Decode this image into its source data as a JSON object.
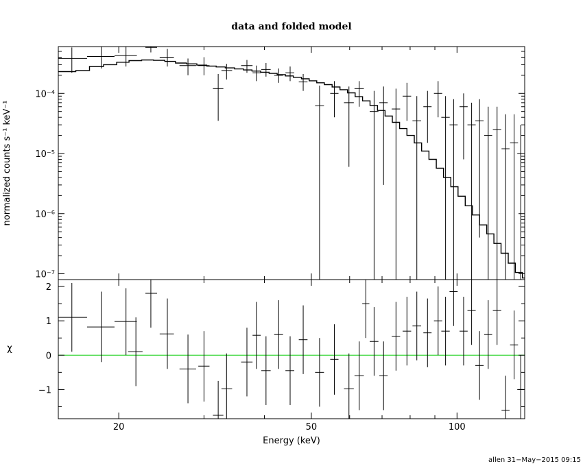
{
  "chart_data": {
    "type": "scatter",
    "title": "data and folded model",
    "xlabel": "Energy (keV)",
    "credit": "allen 31−May−2015 09:15",
    "xscale": "log",
    "xlim": [
      15,
      138
    ],
    "x_ticks": [
      20,
      50,
      100
    ],
    "x_tick_labels": [
      "20",
      "50",
      "100"
    ],
    "panels": [
      {
        "name": "spectrum",
        "ylabel": "normalized counts s⁻¹ keV⁻¹",
        "yscale": "log",
        "ylim": [
          8e-08,
          0.0006
        ],
        "y_ticks": [
          1e-07,
          1e-06,
          1e-05,
          0.0001
        ],
        "y_tick_labels": [
          "10⁻⁷",
          "10⁻⁶",
          "10⁻⁵",
          "10⁻⁴"
        ],
        "series": [
          {
            "kind": "data",
            "color": "#000000",
            "points": [
              [
                16,
                0.00038,
                15,
                17.2,
                0.00022,
                0.00058
              ],
              [
                18.4,
                0.00041,
                17.2,
                19.6,
                0.00026,
                0.0006
              ],
              [
                20.7,
                0.00043,
                19.6,
                21.8,
                0.00028,
                0.0006
              ],
              [
                23.3,
                0.00058,
                22.7,
                24.0,
                0.00048,
                0.0006
              ],
              [
                25.2,
                0.0004,
                24.3,
                26.0,
                0.00028,
                0.00055
              ],
              [
                27.8,
                0.00029,
                26.7,
                28.9,
                0.0002,
                0.00038
              ],
              [
                30.0,
                0.00029,
                29.2,
                30.8,
                0.0002,
                0.0004
              ],
              [
                32.1,
                0.00012,
                31.3,
                32.9,
                3.5e-05,
                0.00021
              ],
              [
                33.4,
                0.00024,
                32.6,
                34.3,
                0.00017,
                0.00031
              ],
              [
                36.8,
                0.00029,
                35.8,
                37.8,
                0.00022,
                0.00036
              ],
              [
                38.5,
                0.00022,
                37.8,
                39.3,
                0.00016,
                0.00029
              ],
              [
                40.3,
                0.00025,
                39.4,
                41.2,
                0.00019,
                0.00032
              ],
              [
                42.8,
                0.0002,
                41.9,
                43.7,
                0.00015,
                0.00026
              ],
              [
                45.2,
                0.00022,
                44.2,
                46.1,
                0.00016,
                0.00028
              ],
              [
                48.1,
                0.000155,
                47.1,
                49.1,
                0.00011,
                0.00021
              ],
              [
                52.0,
                6.2e-05,
                50.9,
                53.1,
                8e-08,
                0.000135
              ],
              [
                55.8,
                0.0001,
                54.7,
                56.9,
                4e-05,
                0.00016
              ],
              [
                59.8,
                7e-05,
                58.4,
                61.2,
                6e-06,
                0.00013
              ],
              [
                62.8,
                0.00012,
                61.4,
                64.2,
                6e-05,
                0.00016
              ],
              [
                67.4,
                5e-05,
                66.0,
                68.8,
                8e-08,
                0.00011
              ],
              [
                70.5,
                7e-05,
                69.1,
                71.9,
                3e-06,
                0.00013
              ],
              [
                74.8,
                5.5e-05,
                73.3,
                76.3,
                8e-08,
                0.00012
              ],
              [
                78.8,
                9e-05,
                77.2,
                80.4,
                3.5e-05,
                0.00015
              ],
              [
                82.6,
                3.5e-05,
                80.9,
                84.3,
                8e-08,
                9e-05
              ],
              [
                86.9,
                6e-05,
                85.2,
                88.6,
                1.5e-05,
                0.00011
              ],
              [
                91.4,
                0.0001,
                89.6,
                93.2,
                4e-05,
                0.00016
              ],
              [
                94.7,
                4e-05,
                92.8,
                96.6,
                8e-08,
                9e-05
              ],
              [
                98.4,
                3e-05,
                96.5,
                100.3,
                8e-08,
                8e-05
              ],
              [
                103.2,
                6e-05,
                101.2,
                105.2,
                8e-06,
                0.0001
              ],
              [
                107.2,
                3e-05,
                105.1,
                109.3,
                8e-08,
                7e-05
              ],
              [
                111.3,
                3.5e-05,
                109.1,
                113.5,
                4e-07,
                8e-05
              ],
              [
                116.0,
                2e-05,
                113.8,
                118.2,
                8e-08,
                6e-05
              ],
              [
                121.0,
                2.5e-05,
                118.6,
                123.4,
                8e-08,
                6e-05
              ],
              [
                126.0,
                1.2e-05,
                123.6,
                128.4,
                8e-08,
                4.5e-05
              ],
              [
                131.2,
                1.5e-05,
                128.7,
                133.7,
                8e-08,
                4.5e-05
              ],
              [
                135.4,
                1e-05,
                133.2,
                137.6,
                8e-08,
                3e-05
              ]
            ]
          },
          {
            "kind": "model",
            "color": "#000000",
            "bins": [
              [
                15,
                16.3,
                0.00023
              ],
              [
                16.3,
                17.4,
                0.00024
              ],
              [
                17.4,
                18.6,
                0.00028
              ],
              [
                18.6,
                19.8,
                0.0003
              ],
              [
                19.8,
                21.0,
                0.00033
              ],
              [
                21.0,
                22.3,
                0.00035
              ],
              [
                22.3,
                23.6,
                0.00036
              ],
              [
                23.6,
                24.9,
                0.000355
              ],
              [
                24.9,
                26.2,
                0.00034
              ],
              [
                26.2,
                27.6,
                0.00032
              ],
              [
                27.6,
                29.0,
                0.00031
              ],
              [
                29.0,
                30.4,
                0.000295
              ],
              [
                30.4,
                31.8,
                0.000285
              ],
              [
                31.8,
                33.2,
                0.000275
              ],
              [
                33.2,
                34.7,
                0.000265
              ],
              [
                34.7,
                36.2,
                0.000255
              ],
              [
                36.2,
                37.7,
                0.000245
              ],
              [
                37.7,
                39.3,
                0.000235
              ],
              [
                39.3,
                40.9,
                0.000225
              ],
              [
                40.9,
                42.5,
                0.000215
              ],
              [
                42.5,
                44.2,
                0.000205
              ],
              [
                44.2,
                45.9,
                0.000195
              ],
              [
                45.9,
                47.7,
                0.000185
              ],
              [
                47.7,
                49.5,
                0.000175
              ],
              [
                49.5,
                51.3,
                0.000162
              ],
              [
                51.3,
                53.2,
                0.00015
              ],
              [
                53.2,
                55.2,
                0.00014
              ],
              [
                55.2,
                57.3,
                0.000128
              ],
              [
                57.3,
                59.4,
                0.000115
              ],
              [
                59.4,
                61.6,
                0.000102
              ],
              [
                61.6,
                63.8,
                8.8e-05
              ],
              [
                63.8,
                66.1,
                7.5e-05
              ],
              [
                66.1,
                68.5,
                6.3e-05
              ],
              [
                68.5,
                71.0,
                5.2e-05
              ],
              [
                71.0,
                73.5,
                4.2e-05
              ],
              [
                73.5,
                76.1,
                3.3e-05
              ],
              [
                76.1,
                78.8,
                2.6e-05
              ],
              [
                78.8,
                81.6,
                2e-05
              ],
              [
                81.6,
                84.5,
                1.5e-05
              ],
              [
                84.5,
                87.5,
                1.1e-05
              ],
              [
                87.5,
                90.6,
                8e-06
              ],
              [
                90.6,
                93.8,
                5.7e-06
              ],
              [
                93.8,
                97.1,
                4e-06
              ],
              [
                97.1,
                100.5,
                2.8e-06
              ],
              [
                100.5,
                104.0,
                1.95e-06
              ],
              [
                104.0,
                107.6,
                1.35e-06
              ],
              [
                107.6,
                111.3,
                9.5e-07
              ],
              [
                111.3,
                115.2,
                6.5e-07
              ],
              [
                115.2,
                119.2,
                4.6e-07
              ],
              [
                119.2,
                123.3,
                3.2e-07
              ],
              [
                123.3,
                127.6,
                2.2e-07
              ],
              [
                127.6,
                132.0,
                1.5e-07
              ],
              [
                132.0,
                136.5,
                1.05e-07
              ],
              [
                136.5,
                138,
                8.5e-08
              ]
            ]
          }
        ]
      },
      {
        "name": "residuals",
        "ylabel": "χ",
        "yscale": "linear",
        "ylim": [
          -1.85,
          2.2
        ],
        "y_ticks": [
          -1,
          0,
          1,
          2
        ],
        "y_tick_labels": [
          "−1",
          "0",
          "1",
          "2"
        ],
        "zero_line_color": "#00cc00",
        "series": [
          {
            "kind": "residuals",
            "color": "#000000",
            "points": [
              [
                16,
                1.1,
                15,
                17.2,
                0.1,
                2.1
              ],
              [
                18.4,
                0.82,
                17.2,
                19.6,
                -0.2,
                1.85
              ],
              [
                20.7,
                0.98,
                19.6,
                21.8,
                0,
                1.95
              ],
              [
                21.7,
                0.1,
                20.9,
                22.4,
                -0.9,
                1.1
              ],
              [
                23.3,
                1.8,
                22.7,
                24.0,
                0.8,
                2.2
              ],
              [
                25.2,
                0.62,
                24.3,
                26.0,
                -0.4,
                1.65
              ],
              [
                27.8,
                -0.4,
                26.7,
                28.9,
                -1.4,
                0.6
              ],
              [
                30.0,
                -0.32,
                29.2,
                30.8,
                -1.35,
                0.7
              ],
              [
                32.1,
                -1.75,
                31.3,
                32.9,
                -1.85,
                -0.75
              ],
              [
                33.4,
                -0.98,
                32.6,
                34.3,
                -1.85,
                0.05
              ],
              [
                36.8,
                -0.2,
                35.8,
                37.8,
                -1.2,
                0.8
              ],
              [
                38.5,
                0.58,
                37.8,
                39.3,
                -0.4,
                1.55
              ],
              [
                40.3,
                -0.45,
                39.4,
                41.2,
                -1.45,
                0.55
              ],
              [
                42.8,
                0.6,
                41.9,
                43.7,
                -0.4,
                1.6
              ],
              [
                45.2,
                -0.45,
                44.2,
                46.1,
                -1.45,
                0.55
              ],
              [
                48.1,
                0.45,
                47.1,
                49.1,
                -0.55,
                1.45
              ],
              [
                52.0,
                -0.5,
                50.9,
                53.1,
                -1.5,
                0.5
              ],
              [
                55.8,
                -0.12,
                54.7,
                56.9,
                -1.15,
                0.9
              ],
              [
                59.8,
                -0.98,
                58.4,
                61.2,
                -1.85,
                0.05
              ],
              [
                62.8,
                -0.6,
                61.4,
                64.2,
                -1.6,
                0.4
              ],
              [
                64.8,
                1.5,
                63.7,
                65.9,
                0.5,
                2.2
              ],
              [
                67.4,
                0.4,
                66.0,
                68.8,
                -0.6,
                1.4
              ],
              [
                70.5,
                -0.6,
                69.1,
                71.9,
                -1.6,
                0.4
              ],
              [
                74.8,
                0.55,
                73.3,
                76.3,
                -0.45,
                1.55
              ],
              [
                78.8,
                0.7,
                77.2,
                80.4,
                -0.3,
                1.7
              ],
              [
                82.6,
                0.85,
                80.9,
                84.3,
                -0.15,
                1.85
              ],
              [
                86.9,
                0.65,
                85.2,
                88.6,
                -0.35,
                1.65
              ],
              [
                91.4,
                1.0,
                89.6,
                93.2,
                0,
                2.0
              ],
              [
                94.7,
                0.7,
                92.8,
                96.6,
                -0.3,
                1.7
              ],
              [
                98.4,
                1.85,
                96.5,
                100.3,
                0.85,
                2.2
              ],
              [
                103.2,
                0.7,
                101.2,
                105.2,
                -0.3,
                1.7
              ],
              [
                107.2,
                1.3,
                105.1,
                109.3,
                0.3,
                2.2
              ],
              [
                111.3,
                -0.3,
                109.1,
                113.5,
                -1.3,
                0.7
              ],
              [
                116.0,
                0.6,
                113.8,
                118.2,
                -0.4,
                1.6
              ],
              [
                121.0,
                1.3,
                118.6,
                123.4,
                0.3,
                2.2
              ],
              [
                126.0,
                -1.6,
                123.6,
                128.4,
                -1.85,
                -0.6
              ],
              [
                131.2,
                0.3,
                128.7,
                133.7,
                -0.7,
                1.3
              ],
              [
                135.4,
                -1.0,
                133.2,
                137.6,
                -1.85,
                0
              ]
            ]
          }
        ]
      }
    ]
  }
}
